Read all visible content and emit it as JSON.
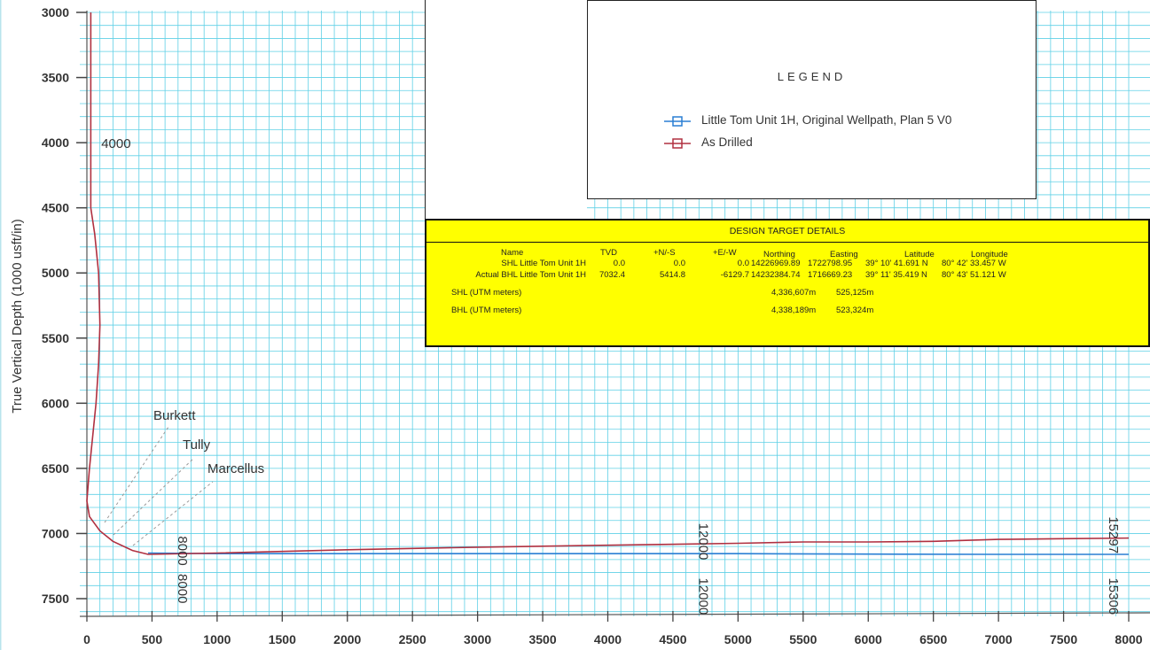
{
  "chart_data": {
    "type": "line",
    "ylabel": "True Vertical Depth (1000 usft/in)",
    "xlabel": "",
    "xlim": [
      0,
      8000
    ],
    "ylim": [
      3000,
      7500
    ],
    "y_inverted": true,
    "x_ticks": [
      "0",
      "500",
      "1000",
      "1500",
      "2000",
      "2500",
      "3000",
      "3500",
      "4000",
      "4500",
      "5000",
      "5500",
      "6000",
      "6500",
      "7000",
      "7500",
      "8000"
    ],
    "y_ticks": [
      "3000",
      "3500",
      "4000",
      "4500",
      "5000",
      "5500",
      "6000",
      "6500",
      "7000",
      "7500"
    ],
    "grid": true,
    "series": [
      {
        "name": "Little Tom Unit 1H, Original Wellpath, Plan 5 V0",
        "color": "#2a7fd4",
        "points": [
          [
            470,
            7150
          ],
          [
            1000,
            7155
          ],
          [
            2000,
            7155
          ],
          [
            3000,
            7155
          ],
          [
            4000,
            7155
          ],
          [
            5000,
            7155
          ],
          [
            6000,
            7158
          ],
          [
            7000,
            7160
          ],
          [
            8000,
            7160
          ]
        ]
      },
      {
        "name": "As Drilled",
        "color": "#b03040",
        "points": [
          [
            30,
            3000
          ],
          [
            30,
            3500
          ],
          [
            30,
            4000
          ],
          [
            30,
            4500
          ],
          [
            60,
            4700
          ],
          [
            90,
            5000
          ],
          [
            100,
            5400
          ],
          [
            90,
            5700
          ],
          [
            70,
            6000
          ],
          [
            20,
            6500
          ],
          [
            0,
            6750
          ],
          [
            20,
            6870
          ],
          [
            100,
            6980
          ],
          [
            200,
            7060
          ],
          [
            350,
            7130
          ],
          [
            470,
            7160
          ],
          [
            1000,
            7150
          ],
          [
            2000,
            7125
          ],
          [
            3000,
            7105
          ],
          [
            4000,
            7090
          ],
          [
            5000,
            7075
          ],
          [
            5500,
            7065
          ],
          [
            6000,
            7065
          ],
          [
            6500,
            7060
          ],
          [
            7000,
            7045
          ],
          [
            7500,
            7040
          ],
          [
            8000,
            7035
          ]
        ]
      }
    ],
    "annotations": {
      "drilled_md_labels": [
        {
          "text": "4000",
          "x": 90,
          "y": 4000
        },
        {
          "text": "8000",
          "x": 700,
          "y": 7020
        },
        {
          "text": "12000",
          "x": 4700,
          "y": 6920
        },
        {
          "text": "15297",
          "x": 7850,
          "y": 6870
        }
      ],
      "plan_md_labels": [
        {
          "text": "8000",
          "x": 700,
          "y": 7310
        },
        {
          "text": "12000",
          "x": 4700,
          "y": 7340
        },
        {
          "text": "15306",
          "x": 7850,
          "y": 7340
        }
      ],
      "formations": [
        "Burkett",
        "Tully",
        "Marcellus"
      ]
    }
  },
  "legend": {
    "title": "LEGEND",
    "items": [
      {
        "label": "Little Tom Unit 1H, Original Wellpath, Plan 5 V0",
        "color": "#2a7fd4"
      },
      {
        "label": "As Drilled",
        "color": "#b03040"
      }
    ]
  },
  "targets": {
    "title": "DESIGN TARGET DETAILS",
    "headers": [
      "Name",
      "TVD",
      "+N/-S",
      "+E/-W",
      "Northing",
      "Easting",
      "Latitude",
      "Longitude"
    ],
    "rows": [
      {
        "name": "SHL Little Tom Unit 1H",
        "tvd": "0.0",
        "ns": "0.0",
        "ew": "0.0",
        "northing": "14226969.89",
        "easting": "1722798.95",
        "latitude": "39° 10' 41.691 N",
        "longitude": "80° 42' 33.457 W"
      },
      {
        "name": "Actual BHL Little Tom Unit 1H",
        "tvd": "7032.4",
        "ns": "5414.8",
        "ew": "-6129.7",
        "northing": "14232384.74",
        "easting": "1716669.23",
        "latitude": "39° 11' 35.419 N",
        "longitude": "80° 43' 51.121 W"
      }
    ],
    "utm": [
      {
        "label": "SHL (UTM meters)",
        "northing": "4,336,607m",
        "easting": "525,125m"
      },
      {
        "label": "BHL  (UTM meters)",
        "northing": "4,338,189m",
        "easting": "523,324m"
      }
    ]
  }
}
